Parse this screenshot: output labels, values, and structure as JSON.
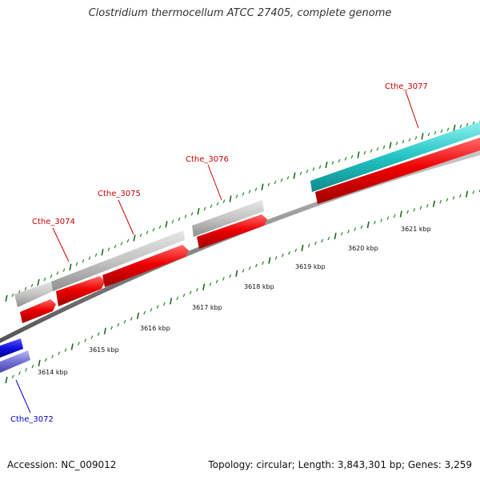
{
  "title": "Clostridium thermocellum ATCC 27405, complete genome",
  "footer": {
    "accession": "Accession: NC_009012",
    "stats": "Topology: circular; Length: 3,843,301 bp; Genes: 3,259"
  },
  "colors": {
    "backbone": "#8a8a8a",
    "tick_major": "#1c6b1c",
    "tick_minor": "#2f8f2f",
    "feature_red": "#e80000",
    "feature_gray": "#bdbdbd",
    "feature_cyan": "#1fbcbc",
    "feature_blue": "#1414d6",
    "feature_lightblue": "#7070d8",
    "label_red": "#cc0000",
    "label_blue": "#0000cc"
  },
  "scale": {
    "unit": "kbp",
    "labels": [
      "3614 kbp",
      "3615 kbp",
      "3616 kbp",
      "3617 kbp",
      "3618 kbp",
      "3619 kbp",
      "3620 kbp",
      "3621 kbp"
    ]
  },
  "genes": [
    {
      "label": "Cthe_3072",
      "color": "blue"
    },
    {
      "label": "Cthe_3074",
      "color": "red"
    },
    {
      "label": "Cthe_3075",
      "color": "red"
    },
    {
      "label": "Cthe_3076",
      "color": "red"
    },
    {
      "label": "Cthe_3077",
      "color": "red"
    }
  ]
}
